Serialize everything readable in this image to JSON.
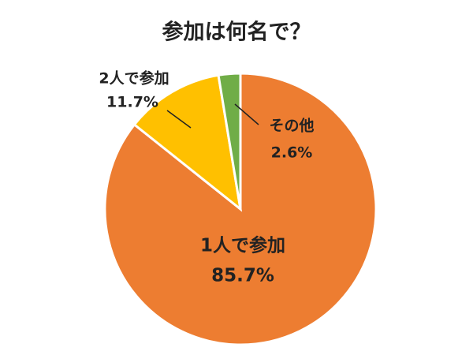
{
  "chart_data": {
    "type": "pie",
    "title": "参加は何名で？",
    "categories": [
      "1人で参加",
      "2人で参加",
      "その他"
    ],
    "values": [
      85.7,
      11.7,
      2.6
    ],
    "value_labels": [
      "85.7%",
      "11.7%",
      "2.6%"
    ],
    "colors": [
      "#ed7d31",
      "#ffc000",
      "#70ad47"
    ]
  }
}
